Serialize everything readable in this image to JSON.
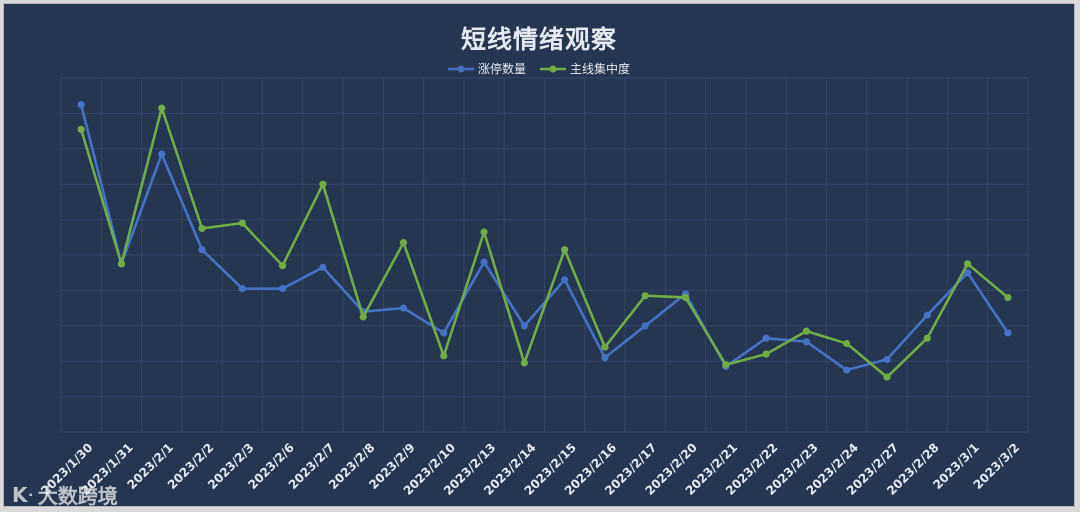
{
  "title": "短线情绪观察",
  "watermark": {
    "logo": "Kᐧ",
    "text": "大数跨境"
  },
  "colors": {
    "background": "#263650",
    "grid": "#34456a",
    "series1": "#4472c4",
    "series2": "#70ad47",
    "text": "#e6e9ef"
  },
  "chart_data": {
    "type": "line",
    "title": "短线情绪观察",
    "xlabel": "",
    "ylabel": "",
    "ylim": [
      0,
      100
    ],
    "grid": true,
    "legend_position": "top-center",
    "categories": [
      "2023/1/30",
      "2023/1/31",
      "2023/2/1",
      "2023/2/2",
      "2023/2/3",
      "2023/2/6",
      "2023/2/7",
      "2023/2/8",
      "2023/2/9",
      "2023/2/10",
      "2023/2/13",
      "2023/2/14",
      "2023/2/15",
      "2023/2/16",
      "2023/2/17",
      "2023/2/20",
      "2023/2/21",
      "2023/2/22",
      "2023/2/23",
      "2023/2/24",
      "2023/2/27",
      "2023/2/28",
      "2023/3/1",
      "2023/3/2"
    ],
    "series": [
      {
        "name": "涨停数量",
        "color": "#4472c4",
        "values": [
          92.5,
          47.5,
          78.5,
          51.5,
          40.5,
          40.5,
          46.5,
          34,
          35,
          28,
          48,
          30,
          43,
          21,
          30,
          39,
          18.5,
          26.5,
          25.5,
          17.5,
          20.5,
          33,
          45,
          28
        ]
      },
      {
        "name": "主线集中度",
        "color": "#70ad47",
        "values": [
          85.5,
          47.5,
          91.5,
          57.5,
          59,
          47,
          70,
          32.5,
          53.5,
          21.5,
          56.5,
          19.5,
          51.5,
          24,
          38.5,
          38,
          19,
          22,
          28.5,
          25,
          15.5,
          26.5,
          47.5,
          38
        ]
      }
    ]
  }
}
